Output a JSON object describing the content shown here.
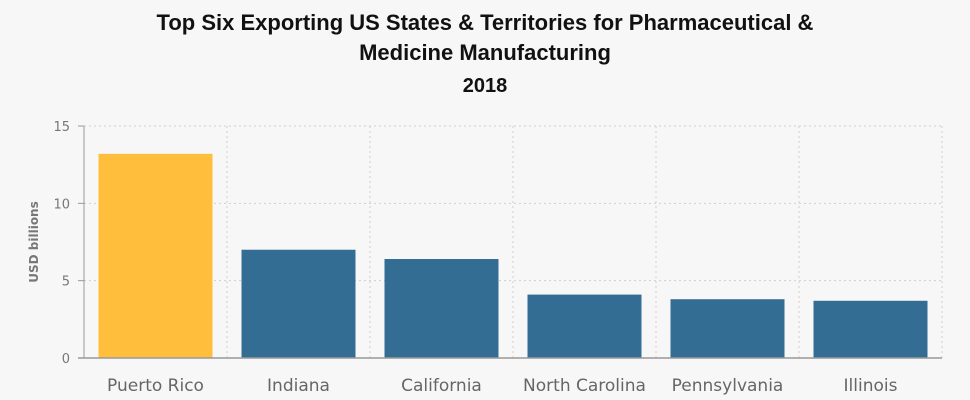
{
  "chart_data": {
    "type": "bar",
    "title": "Top Six Exporting US States & Territories for Pharmaceutical & Medicine Manufacturing",
    "title_line1": "Top Six Exporting US States & Territories for Pharmaceutical &",
    "title_line2": "Medicine Manufacturing",
    "subtitle": "2018",
    "xlabel": "",
    "ylabel": "USD billions",
    "ylim": [
      0,
      15
    ],
    "yticks": [
      0,
      5,
      10,
      15
    ],
    "grid": true,
    "categories": [
      "Puerto Rico",
      "Indiana",
      "California",
      "North Carolina",
      "Pennsylvania",
      "Illinois"
    ],
    "values": [
      13.2,
      7.0,
      6.4,
      4.1,
      3.8,
      3.7
    ],
    "colors": {
      "highlight": "#ffbe3c",
      "default": "#346d94",
      "grid": "#cfcfcf",
      "axis": "#999999"
    },
    "highlight_index": 0
  }
}
